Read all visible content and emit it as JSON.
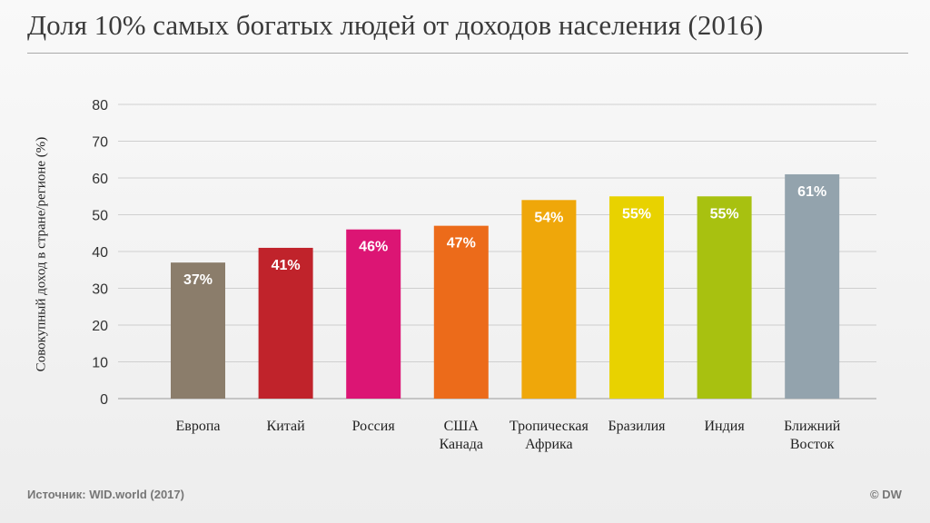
{
  "title": "Доля 10% самых богатых людей от доходов населения (2016)",
  "source": "Источник: WID.world (2017)",
  "copyright": "© DW",
  "chart_data": {
    "type": "bar",
    "ylabel": "Совокупный доход в стране/регионе (%)",
    "ylim": [
      0,
      80
    ],
    "yticks": [
      0,
      10,
      20,
      30,
      40,
      50,
      60,
      70,
      80
    ],
    "grid": true,
    "categories": [
      [
        "Европа"
      ],
      [
        "Китай"
      ],
      [
        "Россия"
      ],
      [
        "США",
        "Канада"
      ],
      [
        "Тропическая",
        "Африка"
      ],
      [
        "Бразилия"
      ],
      [
        "Индия"
      ],
      [
        "Ближний",
        "Восток"
      ]
    ],
    "values": [
      37,
      41,
      46,
      47,
      54,
      55,
      55,
      61
    ],
    "value_labels": [
      "37%",
      "41%",
      "46%",
      "47%",
      "54%",
      "55%",
      "55%",
      "61%"
    ],
    "colors": [
      "#8b7d6b",
      "#c0232b",
      "#dc1574",
      "#ec6b1a",
      "#efa70a",
      "#e8d200",
      "#a8c110",
      "#93a3ad"
    ]
  }
}
